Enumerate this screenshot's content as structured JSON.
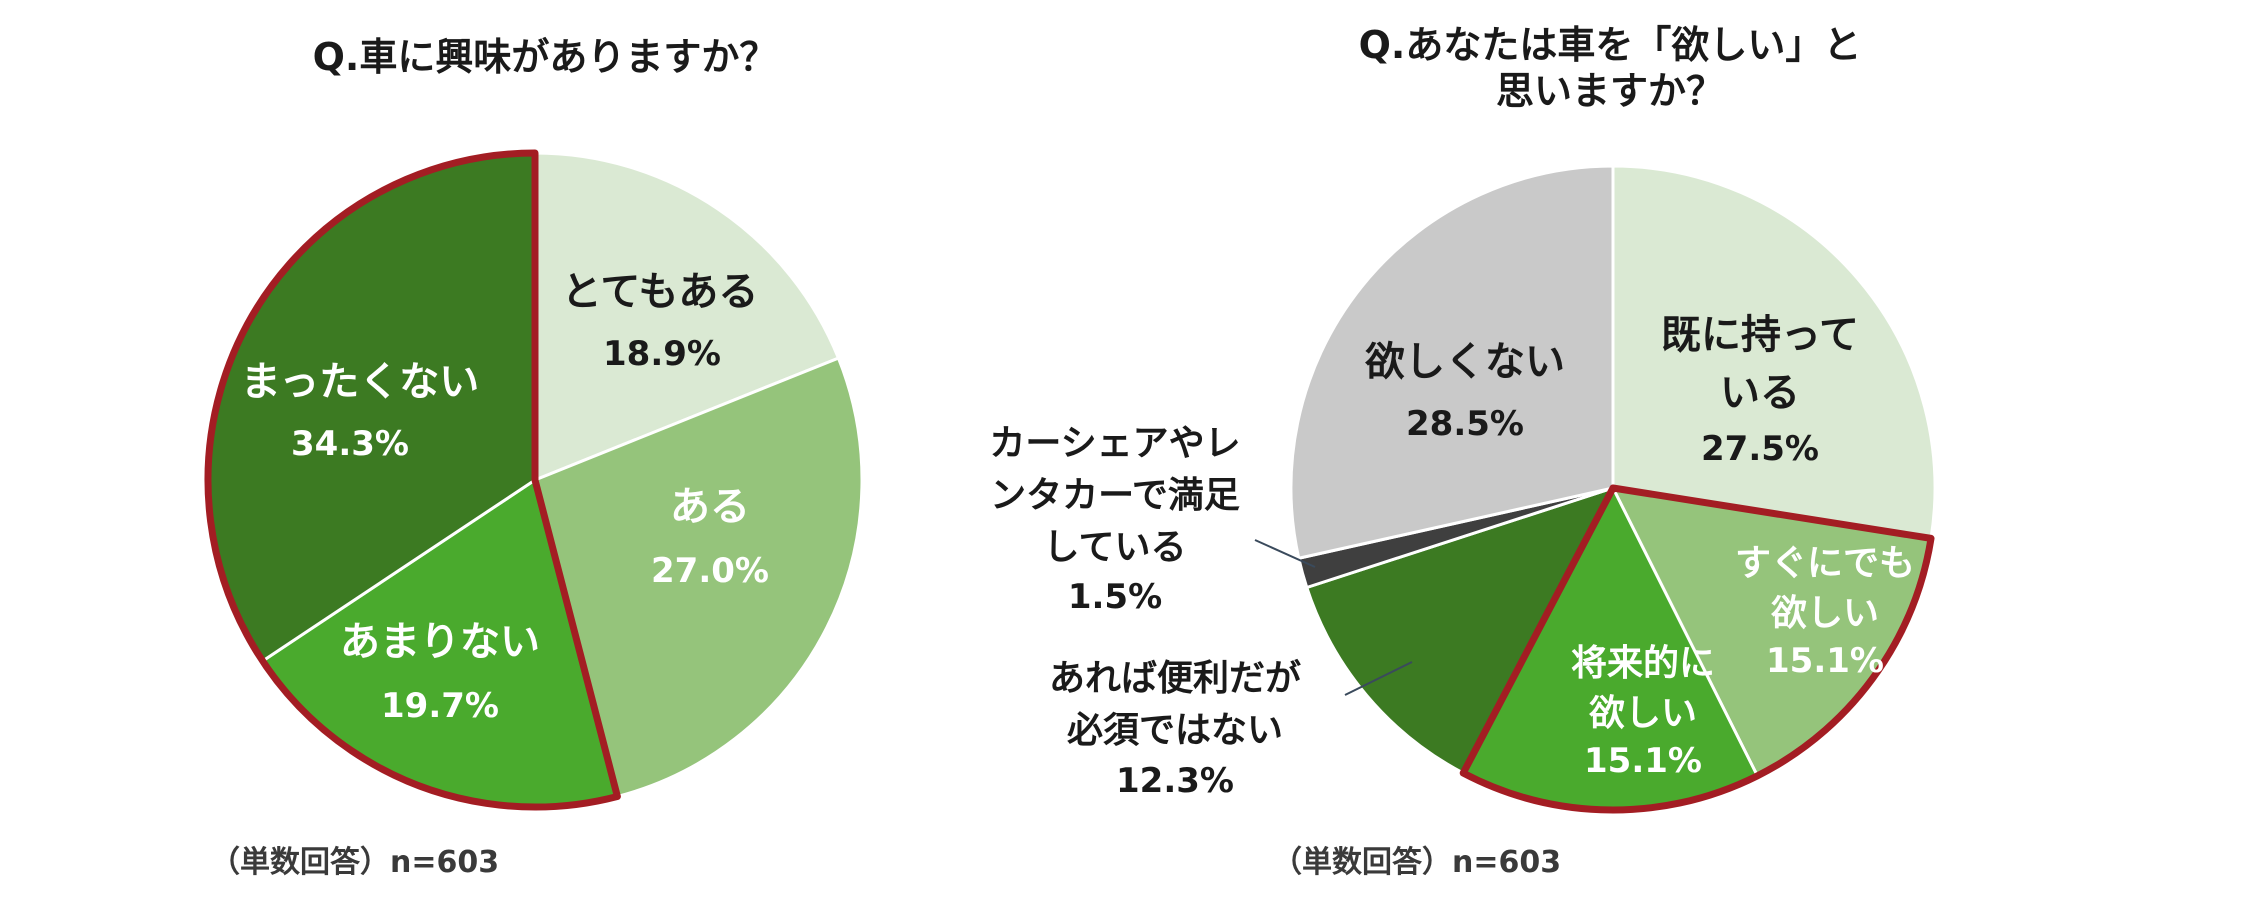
{
  "chart_data": [
    {
      "type": "pie",
      "title": "Q.車に興味がありますか？",
      "note": "（単数回答）n=603",
      "start_angle_deg": 0,
      "direction": "clockwise",
      "slices": [
        {
          "label": "とてもある",
          "value": 18.9,
          "value_text": "18.9%",
          "color": "#dae9d3"
        },
        {
          "label": "ある",
          "value": 27.0,
          "value_text": "27.0%",
          "color": "#95c47b"
        },
        {
          "label": "あまりない",
          "value": 19.7,
          "value_text": "19.7%",
          "color": "#4aaa2d"
        },
        {
          "label": "まったくない",
          "value": 34.3,
          "value_text": "34.3%",
          "color": "#3c7a22"
        }
      ],
      "highlight": {
        "slices": [
          "あまりない",
          "まったくない"
        ],
        "color": "#a31d23"
      }
    },
    {
      "type": "pie",
      "title": "Q.あなたは車を「欲しい」と思いますか？",
      "note": "（単数回答）n=603",
      "start_angle_deg": 0,
      "direction": "clockwise",
      "slices": [
        {
          "label": "既に持っている",
          "value": 27.5,
          "value_text": "27.5%",
          "color": "#dae9d3"
        },
        {
          "label": "すぐにでも欲しい",
          "value": 15.1,
          "value_text": "15.1%",
          "color": "#95c47b"
        },
        {
          "label": "将来的に欲しい",
          "value": 15.1,
          "value_text": "15.1%",
          "color": "#4aaa2d"
        },
        {
          "label": "あれば便利だが必須ではない",
          "value": 12.3,
          "value_text": "12.3%",
          "color": "#3c7a22"
        },
        {
          "label": "カーシェアやレンタカーで満足している",
          "value": 1.5,
          "value_text": "1.5%",
          "color": "#3f3f3f"
        },
        {
          "label": "欲しくない",
          "value": 28.5,
          "value_text": "28.5%",
          "color": "#c9c9c9"
        }
      ],
      "highlight": {
        "slices": [
          "すぐにでも欲しい",
          "将来的に欲しい"
        ],
        "color": "#a31d23"
      }
    }
  ]
}
